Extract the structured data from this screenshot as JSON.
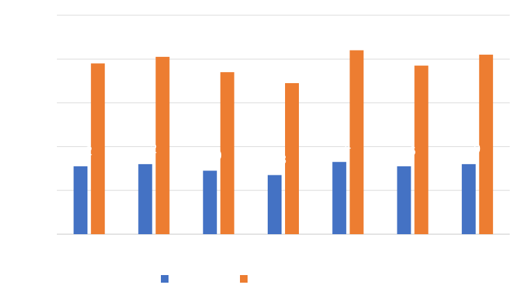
{
  "chart_data": {
    "type": "bar",
    "categories": [
      "",
      "",
      "",
      "",
      "",
      "",
      ""
    ],
    "series": [
      {
        "color": "#4472c4",
        "values": [
          3.1,
          3.2,
          2.9,
          2.7,
          3.3,
          3.1,
          3.2
        ],
        "labels": [
          "2",
          "2",
          "0",
          "8",
          "4",
          "6",
          "0"
        ]
      },
      {
        "color": "#ed7d31",
        "values": [
          7.8,
          8.1,
          7.4,
          6.9,
          8.4,
          7.7,
          8.2
        ]
      }
    ],
    "ylim": [
      0,
      10
    ],
    "grid": true,
    "legend": "bottom",
    "title": "",
    "xlabel": "",
    "ylabel": ""
  }
}
